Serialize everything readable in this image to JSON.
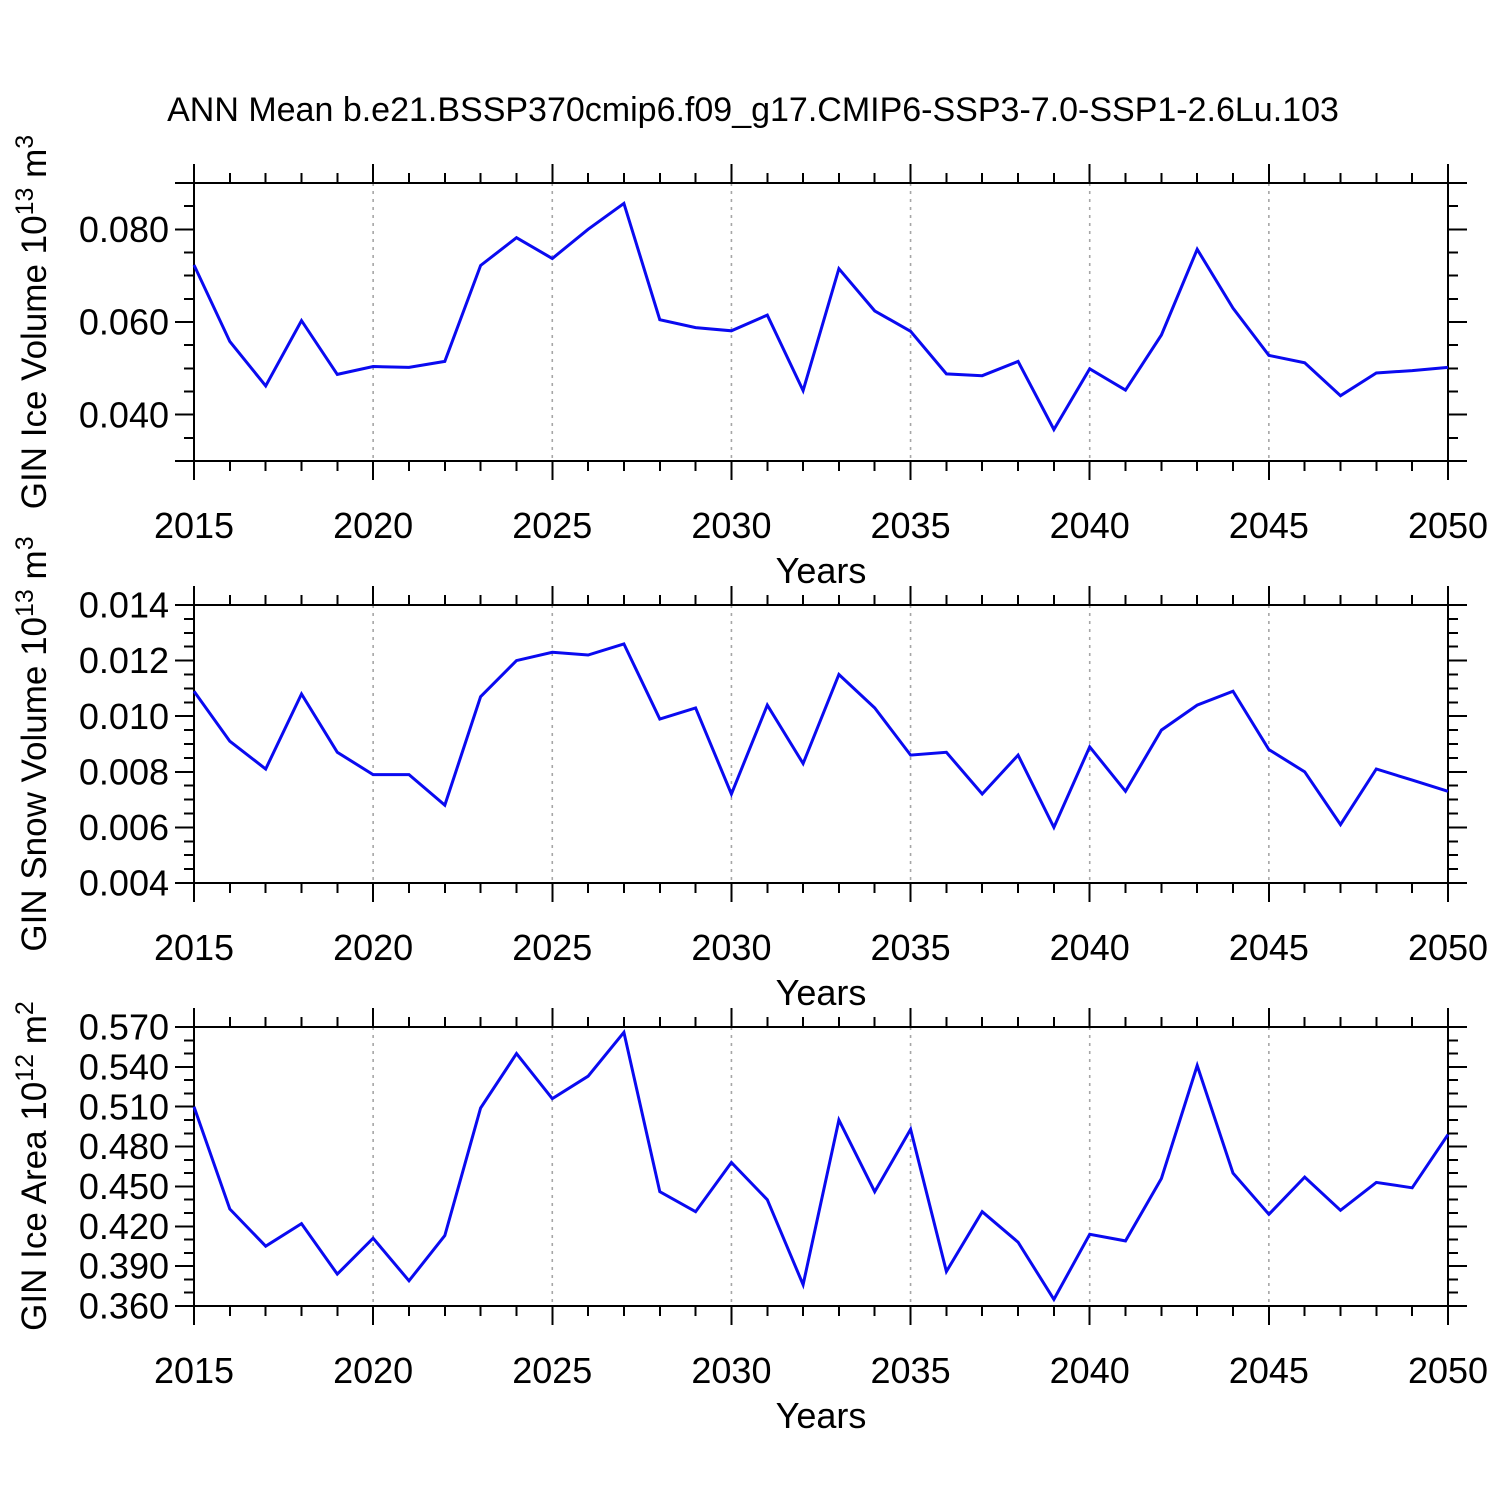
{
  "chart": {
    "title": "ANN Mean b.e21.BSSP370cmip6.f09_g17.CMIP6-SSP3-7.0-SSP1-2.6Lu.103",
    "line_color": "#0a0af0",
    "grid_color": "#a6a6a6",
    "axis_color": "#000000",
    "x_axis": {
      "label": "Years",
      "min": 2015,
      "max": 2050,
      "major_step": 5,
      "minor_step": 1,
      "tick_labels": [
        "2015",
        "2020",
        "2025",
        "2030",
        "2035",
        "2040",
        "2045",
        "2050"
      ],
      "grid_years": [
        2020,
        2025,
        2030,
        2035,
        2040,
        2045
      ],
      "years": [
        2015,
        2016,
        2017,
        2018,
        2019,
        2020,
        2021,
        2022,
        2023,
        2024,
        2025,
        2026,
        2027,
        2028,
        2029,
        2030,
        2031,
        2032,
        2033,
        2034,
        2035,
        2036,
        2037,
        2038,
        2039,
        2040,
        2041,
        2042,
        2043,
        2044,
        2045,
        2046,
        2047,
        2048,
        2049,
        2050
      ]
    }
  },
  "chart_data": [
    {
      "type": "line",
      "name": "GIN Ice Volume",
      "ylabel": "GIN Ice Volume 10^13 m^3",
      "ylabel_parts": [
        {
          "text": "GIN Ice Volume 10"
        },
        {
          "text": "13",
          "sup": true
        },
        {
          "text": " m"
        },
        {
          "text": "3",
          "sup": true
        }
      ],
      "xlabel": "Years",
      "ylim": [
        0.03,
        0.09
      ],
      "ytick_values": [
        0.04,
        0.06,
        0.08
      ],
      "ytick_labels": [
        "0.040",
        "0.060",
        "0.080"
      ],
      "yminor_step": 0.005,
      "values": [
        0.0723,
        0.0558,
        0.0462,
        0.0603,
        0.0487,
        0.0504,
        0.0502,
        0.0515,
        0.0722,
        0.0782,
        0.0737,
        0.08,
        0.0856,
        0.0605,
        0.0588,
        0.0581,
        0.0615,
        0.0452,
        0.0715,
        0.0624,
        0.058,
        0.0488,
        0.0484,
        0.0515,
        0.0368,
        0.0499,
        0.0453,
        0.0572,
        0.0757,
        0.063,
        0.0528,
        0.0512,
        0.0441,
        0.049,
        0.0495,
        0.0502
      ]
    },
    {
      "type": "line",
      "name": "GIN Snow Volume",
      "ylabel": "GIN Snow Volume 10^13 m^3",
      "ylabel_parts": [
        {
          "text": "GIN Snow Volume 10"
        },
        {
          "text": "13",
          "sup": true
        },
        {
          "text": " m"
        },
        {
          "text": "3",
          "sup": true
        }
      ],
      "xlabel": "Years",
      "ylim": [
        0.004,
        0.014
      ],
      "ytick_values": [
        0.004,
        0.006,
        0.008,
        0.01,
        0.012,
        0.014
      ],
      "ytick_labels": [
        "0.004",
        "0.006",
        "0.008",
        "0.010",
        "0.012",
        "0.014"
      ],
      "yminor_step": 0.0005,
      "values": [
        0.0109,
        0.0091,
        0.0081,
        0.0108,
        0.0087,
        0.0079,
        0.0079,
        0.0068,
        0.0107,
        0.012,
        0.0123,
        0.0122,
        0.0126,
        0.0099,
        0.0103,
        0.0072,
        0.0104,
        0.0083,
        0.0115,
        0.0103,
        0.0086,
        0.0087,
        0.0072,
        0.0086,
        0.006,
        0.0089,
        0.0073,
        0.0095,
        0.0104,
        0.0109,
        0.0088,
        0.008,
        0.0061,
        0.0081,
        0.0077,
        0.0073
      ]
    },
    {
      "type": "line",
      "name": "GIN Ice Area",
      "ylabel": "GIN Ice Area 10^12 m^2",
      "ylabel_parts": [
        {
          "text": "GIN Ice Area 10"
        },
        {
          "text": "12",
          "sup": true
        },
        {
          "text": " m"
        },
        {
          "text": "2",
          "sup": true
        }
      ],
      "xlabel": "Years",
      "ylim": [
        0.36,
        0.57
      ],
      "ytick_values": [
        0.36,
        0.39,
        0.42,
        0.45,
        0.48,
        0.51,
        0.54,
        0.57
      ],
      "ytick_labels": [
        "0.360",
        "0.390",
        "0.420",
        "0.450",
        "0.480",
        "0.510",
        "0.540",
        "0.570"
      ],
      "yminor_step": 0.01,
      "values": [
        0.51,
        0.433,
        0.405,
        0.422,
        0.384,
        0.411,
        0.379,
        0.413,
        0.509,
        0.55,
        0.516,
        0.533,
        0.566,
        0.446,
        0.431,
        0.468,
        0.44,
        0.376,
        0.5,
        0.446,
        0.493,
        0.386,
        0.431,
        0.408,
        0.365,
        0.414,
        0.409,
        0.456,
        0.541,
        0.46,
        0.429,
        0.457,
        0.432,
        0.453,
        0.449,
        0.489
      ]
    }
  ]
}
